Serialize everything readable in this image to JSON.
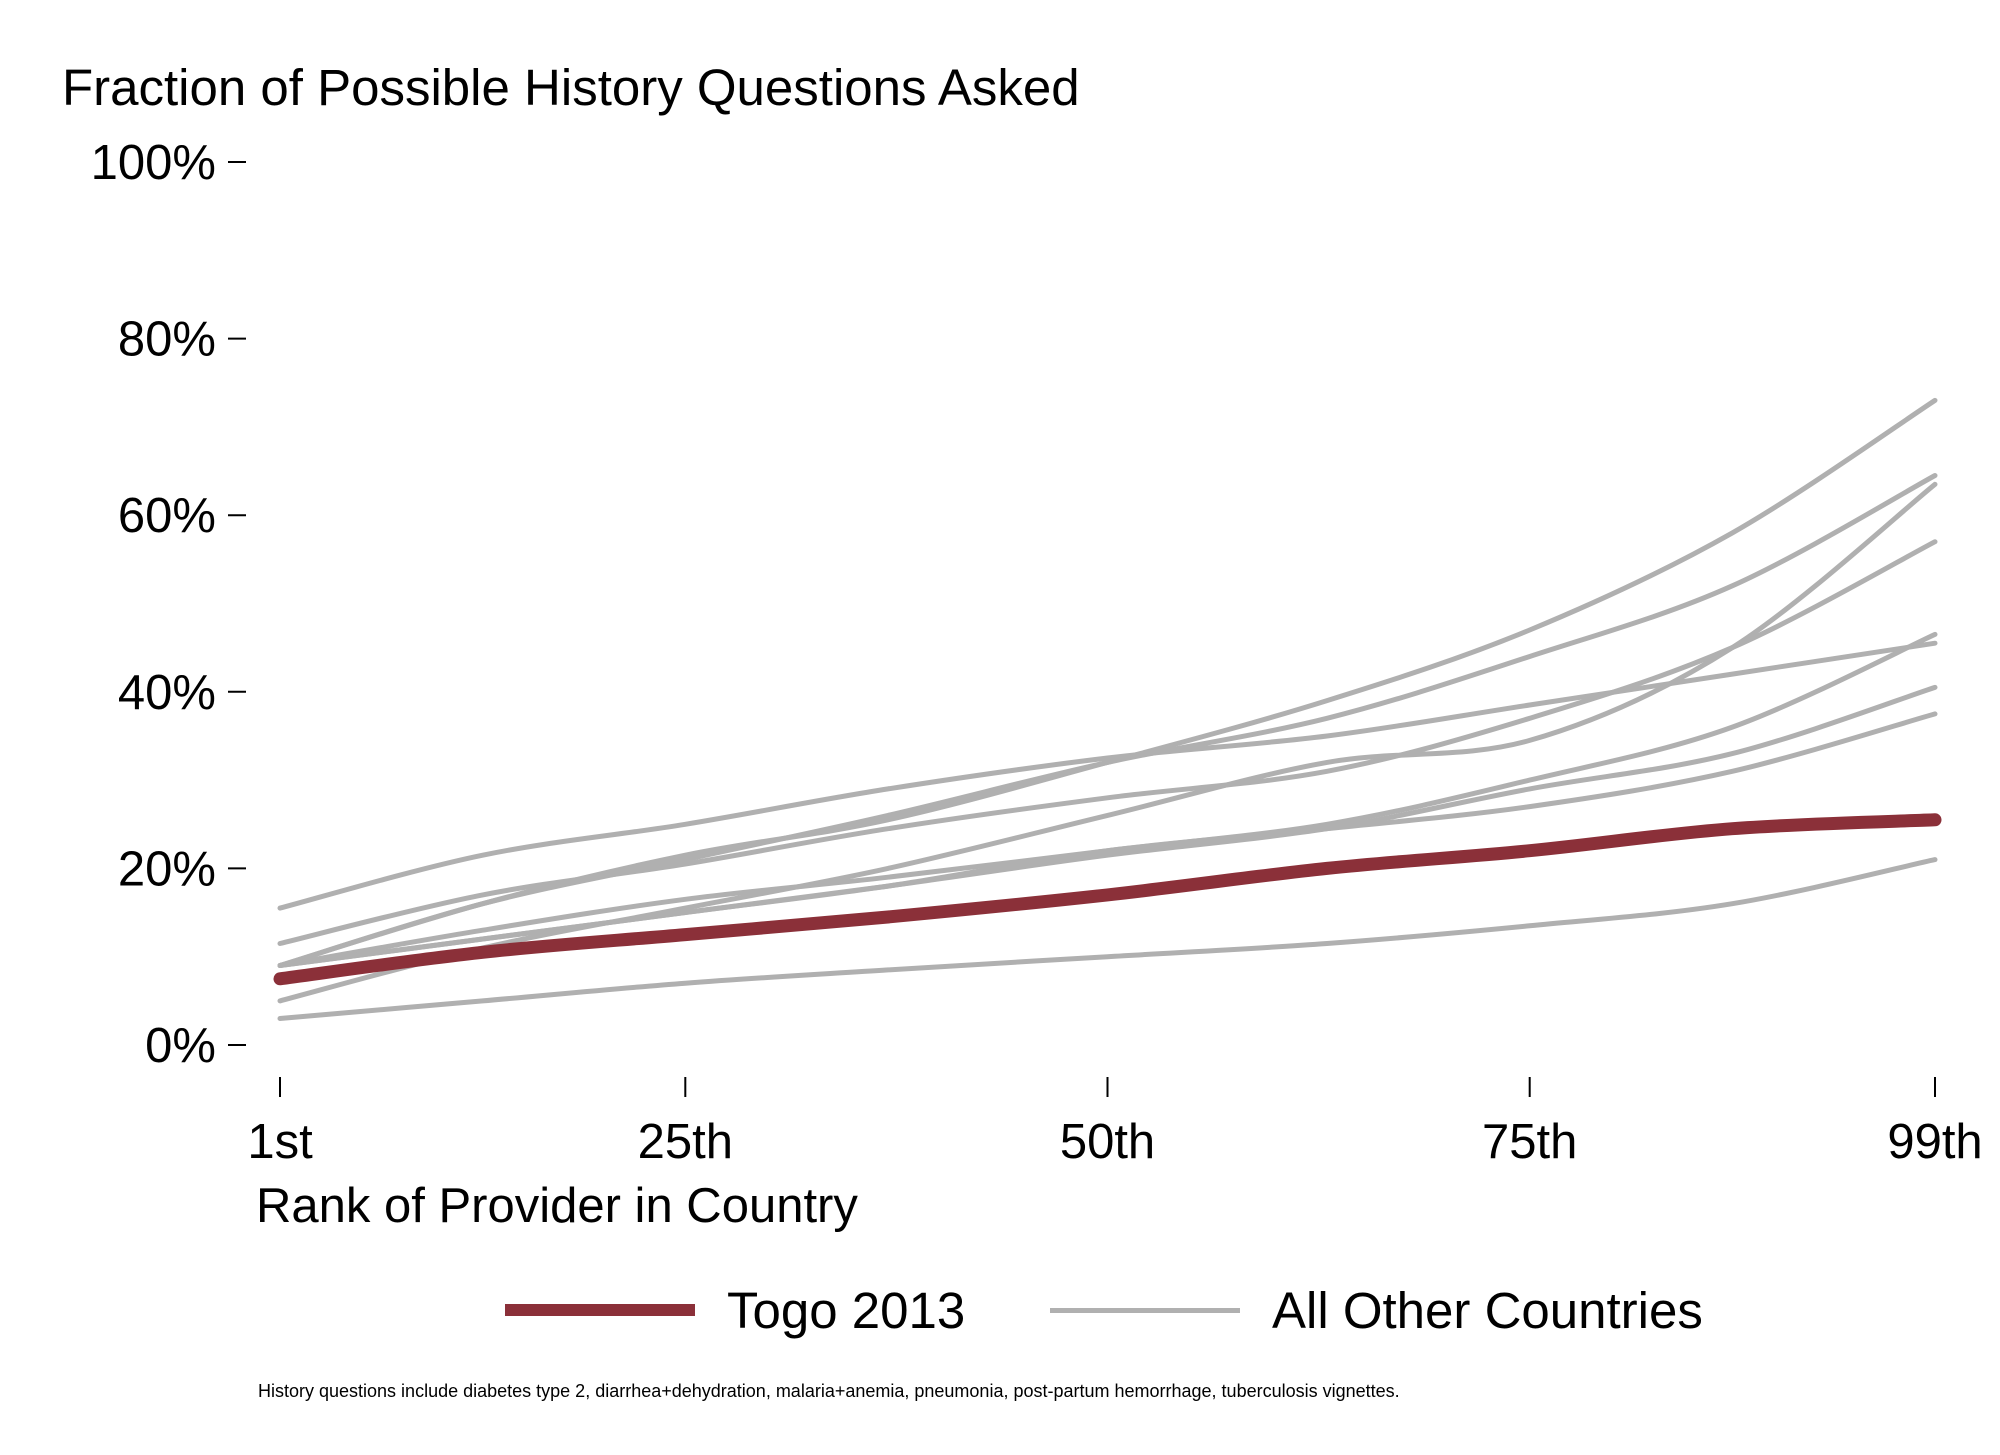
{
  "chart_data": {
    "type": "line",
    "title": "Fraction of Possible History Questions Asked",
    "xlabel": "Rank of Provider in Country",
    "ylabel": "",
    "x_ticks": [
      {
        "value": 1,
        "label": "1st"
      },
      {
        "value": 25,
        "label": "25th"
      },
      {
        "value": 50,
        "label": "50th"
      },
      {
        "value": 75,
        "label": "75th"
      },
      {
        "value": 99,
        "label": "99th"
      }
    ],
    "y_ticks": [
      {
        "value": 0,
        "label": "0%"
      },
      {
        "value": 20,
        "label": "20%"
      },
      {
        "value": 40,
        "label": "40%"
      },
      {
        "value": 60,
        "label": "60%"
      },
      {
        "value": 80,
        "label": "80%"
      },
      {
        "value": 100,
        "label": "100%"
      }
    ],
    "xlim": [
      1,
      99
    ],
    "ylim": [
      0,
      100
    ],
    "grid": false,
    "legend_position": "bottom",
    "note": "History questions include diabetes type 2, diarrhea+dehydration, malaria+anemia, pneumonia, post-partum hemorrhage, tuberculosis vignettes.",
    "legend": [
      {
        "label": "Togo 2013",
        "color": "#8b3039"
      },
      {
        "label": "All Other Countries",
        "color": "#b0b0b0"
      }
    ],
    "x": [
      1,
      13,
      25,
      37,
      50,
      63,
      75,
      87,
      99
    ],
    "series": [
      {
        "group": "other",
        "values": [
          9,
          16,
          21,
          26,
          32,
          37,
          44,
          52,
          64.5
        ]
      },
      {
        "group": "other",
        "values": [
          9,
          16,
          21.5,
          25.5,
          32,
          39,
          47,
          58,
          73
        ]
      },
      {
        "group": "other",
        "values": [
          5,
          11,
          15.5,
          20,
          26,
          32,
          34.5,
          45,
          63.5
        ]
      },
      {
        "group": "other",
        "values": [
          11.5,
          17,
          20.5,
          24.5,
          28,
          31,
          37,
          45,
          57
        ]
      },
      {
        "group": "other",
        "values": [
          15.5,
          21.5,
          25,
          29,
          32.5,
          35,
          38.5,
          42,
          45.5
        ]
      },
      {
        "group": "other",
        "values": [
          9,
          13,
          16.5,
          19,
          22,
          25,
          30,
          36,
          46.5
        ]
      },
      {
        "group": "other",
        "values": [
          9,
          12,
          15,
          18,
          21.5,
          24.5,
          29,
          33,
          40.5
        ]
      },
      {
        "group": "other",
        "values": [
          9,
          12,
          15,
          18,
          22,
          24.5,
          27,
          31,
          37.5
        ]
      },
      {
        "group": "other",
        "values": [
          3,
          5,
          7,
          8.5,
          10,
          11.5,
          13.5,
          16,
          21
        ]
      },
      {
        "group": "highlight",
        "name": "Togo 2013",
        "values": [
          7.5,
          10.5,
          12.5,
          14.5,
          17,
          20,
          22,
          24.5,
          25.5
        ]
      }
    ]
  }
}
